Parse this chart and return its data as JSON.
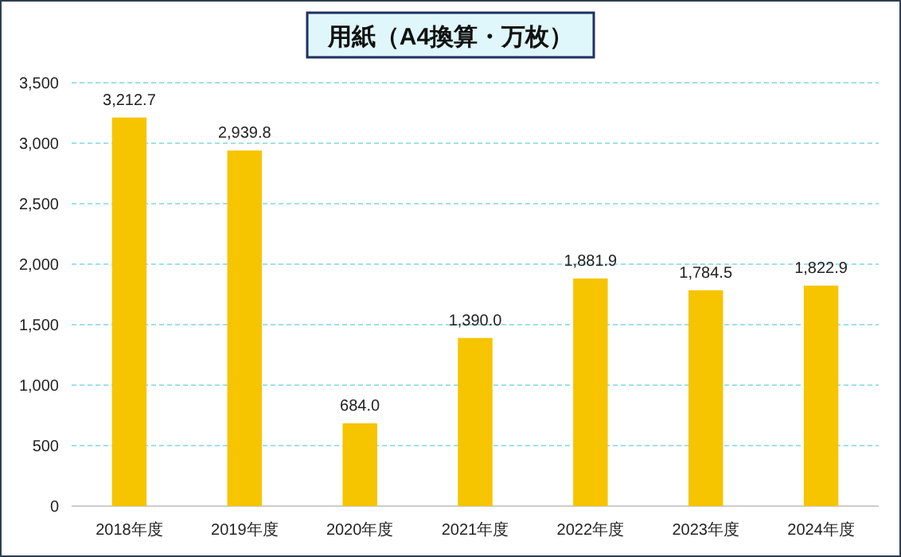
{
  "chart_data": {
    "type": "bar",
    "title": "用紙（A4換算・万枚）",
    "categories": [
      "2018年度",
      "2019年度",
      "2020年度",
      "2021年度",
      "2022年度",
      "2023年度",
      "2024年度"
    ],
    "values": [
      3212.7,
      2939.8,
      684.0,
      1390.0,
      1881.9,
      1784.5,
      1822.9
    ],
    "value_labels": [
      "3,212.7",
      "2,939.8",
      "684.0",
      "1,390.0",
      "1,881.9",
      "1,784.5",
      "1,822.9"
    ],
    "color": "#f7c400",
    "ylim": [
      0,
      3500
    ],
    "yticks": [
      0,
      {
        "value": 500,
        "label": "500"
      },
      {
        "value": 1000,
        "label": "1,000"
      },
      {
        "value": 1500,
        "label": "1,500"
      },
      {
        "value": 2000,
        "label": "2,000"
      },
      {
        "value": 2500,
        "label": "2,500"
      },
      {
        "value": 3000,
        "label": "3,000"
      },
      {
        "value": 3500,
        "label": "3,500"
      }
    ],
    "grid": "y"
  }
}
